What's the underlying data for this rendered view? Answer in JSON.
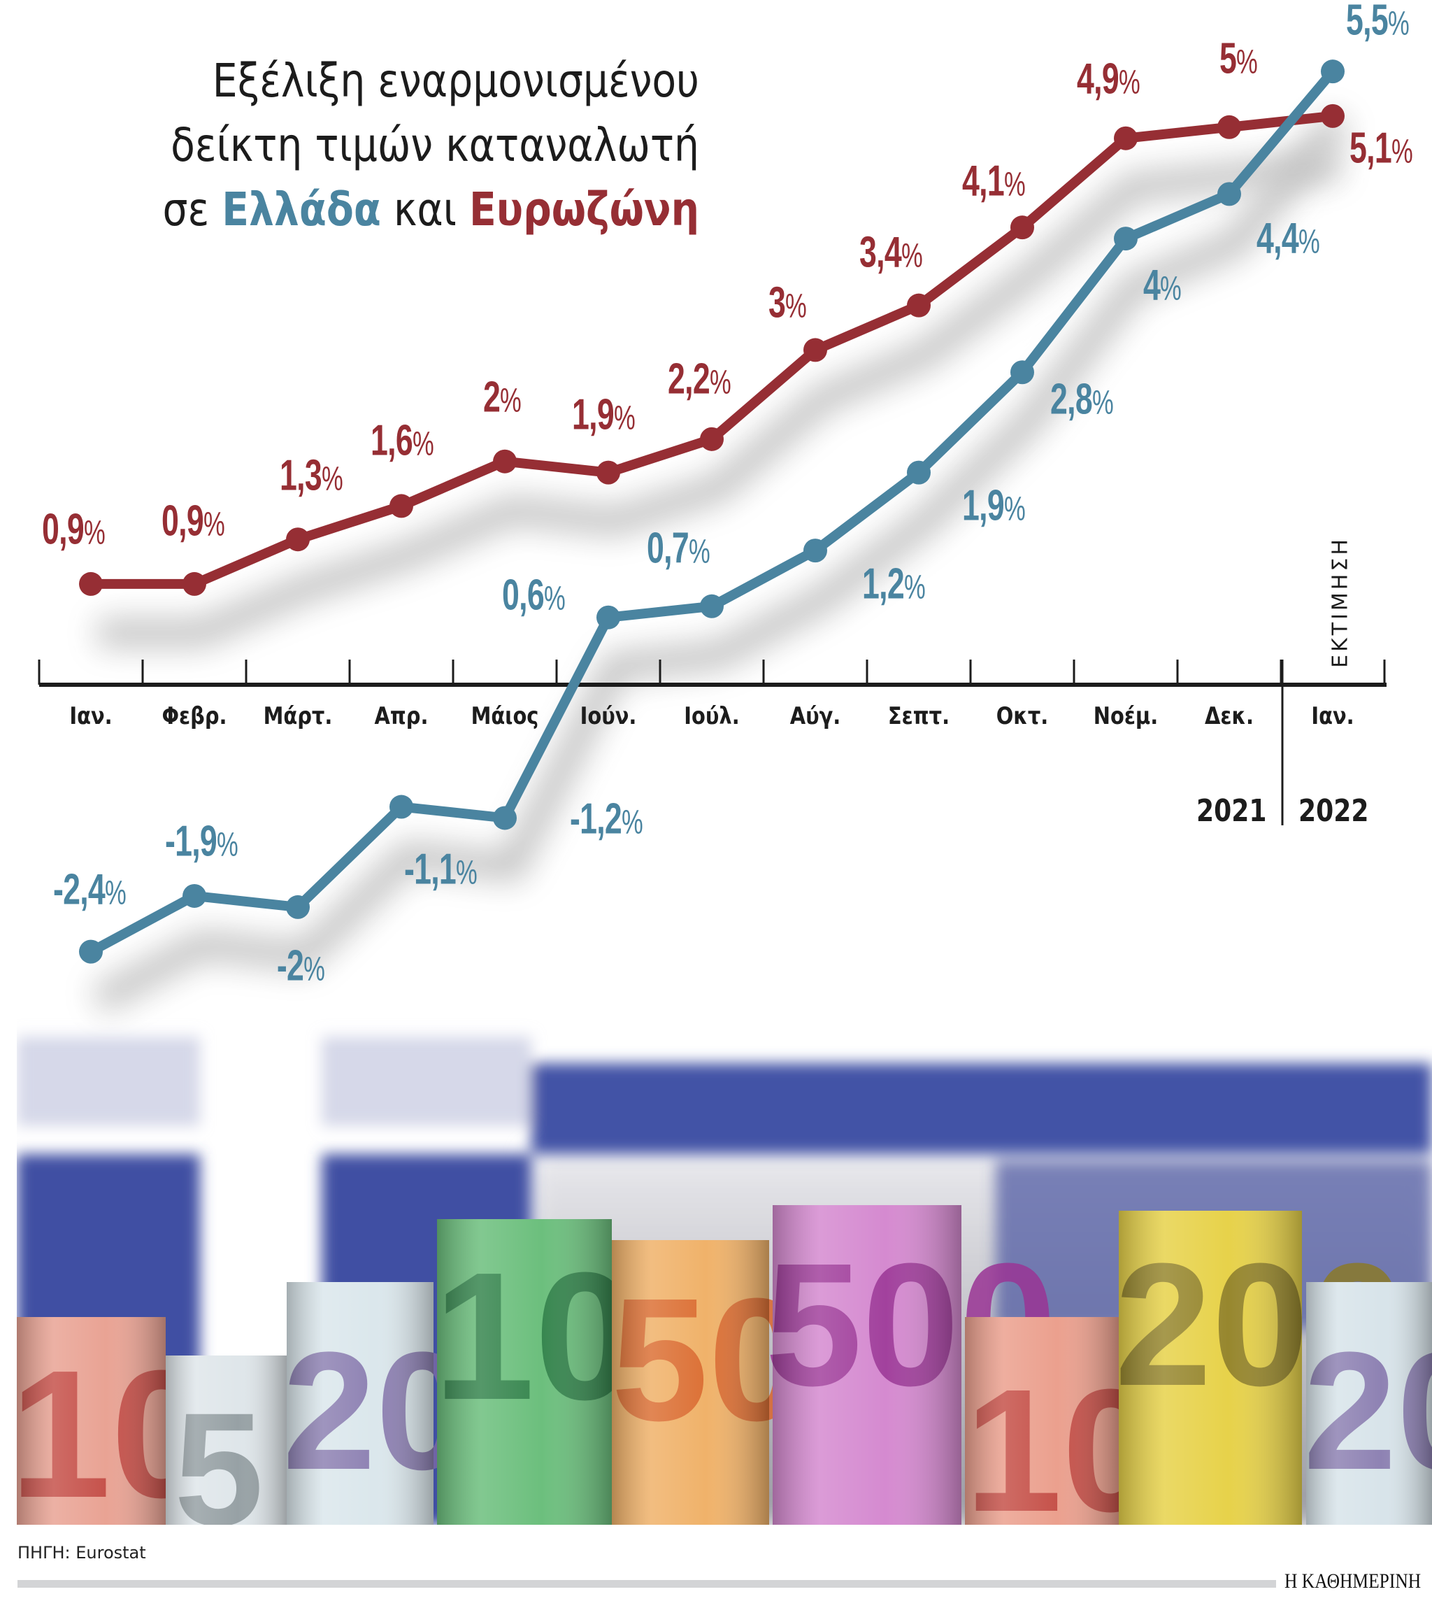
{
  "title": {
    "line1": "Εξέλιξη εναρμονισμένου",
    "line2": "δείκτη τιμών καταναλωτή",
    "line3_prefix": "σε ",
    "line3_greece": "Ελλάδα",
    "line3_middle": " και ",
    "line3_eurozone": "Ευρωζώνη"
  },
  "colors": {
    "greece": "#4a84a0",
    "eurozone": "#962e34",
    "axis": "#1c1c1c",
    "flag_blue": "#3f4fa3"
  },
  "axis": {
    "months": [
      "Ιαν.",
      "Φεβρ.",
      "Μάρτ.",
      "Απρ.",
      "Μάιος",
      "Ιούν.",
      "Ιούλ.",
      "Αύγ.",
      "Σεπτ.",
      "Οκτ.",
      "Νοέμ.",
      "Δεκ.",
      "Ιαν."
    ],
    "year_2021": "2021",
    "year_2022": "2022",
    "estimate_label": "ΕΚΤΙΜΗΣΗ"
  },
  "labels": {
    "eurozone": [
      "0,9",
      "0,9",
      "1,3",
      "1,6",
      "2",
      "1,9",
      "2,2",
      "3",
      "3,4",
      "4,1",
      "4,9",
      "5",
      "5,1"
    ],
    "greece": [
      "-2,4",
      "-1,9",
      "-2",
      "-1,1",
      "-1,2",
      "0,6",
      "0,7",
      "1,2",
      "1,9",
      "2,8",
      "4",
      "4,4",
      "5,5"
    ],
    "pct": "%"
  },
  "footer": {
    "source": "ΠΗΓΗ: Eurostat",
    "publisher": "Η ΚΑΘΗΜΕΡΙΝΗ"
  },
  "background": {
    "banknotes": [
      "10",
      "5",
      "20",
      "100",
      "50",
      "500",
      "10",
      "200",
      "20"
    ]
  },
  "chart_data": {
    "type": "line",
    "title": "Εξέλιξη εναρμονισμένου δείκτη τιμών καταναλωτή σε Ελλάδα και Ευρωζώνη",
    "xlabel": "",
    "ylabel": "",
    "categories": [
      "Ιαν. 2021",
      "Φεβρ. 2021",
      "Μάρτ. 2021",
      "Απρ. 2021",
      "Μάιος 2021",
      "Ιούν. 2021",
      "Ιούλ. 2021",
      "Αύγ. 2021",
      "Σεπτ. 2021",
      "Οκτ. 2021",
      "Νοέμ. 2021",
      "Δεκ. 2021",
      "Ιαν. 2022 (εκτίμηση)"
    ],
    "series": [
      {
        "name": "Ευρωζώνη",
        "color": "#962e34",
        "values": [
          0.9,
          0.9,
          1.3,
          1.6,
          2.0,
          1.9,
          2.2,
          3.0,
          3.4,
          4.1,
          4.9,
          5.0,
          5.1
        ]
      },
      {
        "name": "Ελλάδα",
        "color": "#4a84a0",
        "values": [
          -2.4,
          -1.9,
          -2.0,
          -1.1,
          -1.2,
          0.6,
          0.7,
          1.2,
          1.9,
          2.8,
          4.0,
          4.4,
          5.5
        ]
      }
    ],
    "unit": "%",
    "grid": false,
    "legend_position": "title (colored words)",
    "annotations": [
      "ΕΚΤΙΜΗΣΗ (Ιαν. 2022)",
      "2021",
      "2022"
    ],
    "source": "ΠΗΓΗ: Eurostat"
  }
}
